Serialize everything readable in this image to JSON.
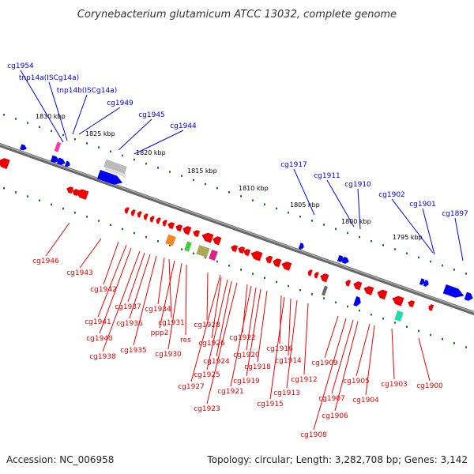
{
  "title": "Corynebacterium glutamicum ATCC 13032, complete genome",
  "footer": {
    "accession": "Accession: NC_006958",
    "topology": "Topology: circular; Length: 3,282,708 bp; Genes: 3,142"
  },
  "colors": {
    "forward": "#0000ee",
    "reverse": "#ee0000",
    "backbone": "#777777",
    "tick": "#117711"
  },
  "scale_labels": [
    "1830 kbp",
    "1825 kbp",
    "1820 kbp",
    "1815 kbp",
    "1810 kbp",
    "1805 kbp",
    "1800 kbp",
    "1795 kbp"
  ],
  "forward_genes": [
    "cg1954",
    "tnp14a(ISCg14a)",
    "tnp14b(ISCg14a)",
    "cg1949",
    "cg1945",
    "cg1944",
    "cg1917",
    "cg1911",
    "cg1910",
    "cg1902",
    "cg1901",
    "cg1897"
  ],
  "reverse_genes": [
    "cg1946",
    "cg1943",
    "cg1942",
    "cg1941",
    "cg1940",
    "cg1938",
    "cg1937",
    "cg1936",
    "cg1935",
    "cg1934",
    "cg1931",
    "ppp2",
    "cg1930",
    "res",
    "cg1928",
    "cg1927",
    "cg1926",
    "cg1925",
    "cg1924",
    "cg1923",
    "cg1922",
    "cg1921",
    "cg1920",
    "cg1919",
    "cg1918",
    "cg1916",
    "cg1915",
    "cg1914",
    "cg1913",
    "cg1912",
    "cg1909",
    "cg1908",
    "cg1907",
    "cg1906",
    "cg1905",
    "cg1904",
    "cg1903",
    "cg1900"
  ]
}
